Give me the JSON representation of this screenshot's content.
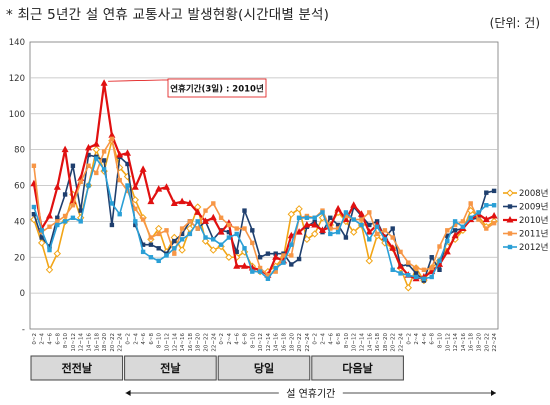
{
  "page": {
    "title": "* 최근 5년간 설 연휴 교통사고 발생현황(시간대별 분석)",
    "unit": "(단위: 건)"
  },
  "chart_data": {
    "type": "line",
    "title": "최근 5년간 설 연휴 교통사고 발생현황(시간대별 분석)",
    "ylim": [
      0,
      140
    ],
    "yticks": [
      -20,
      0,
      20,
      40,
      60,
      80,
      100,
      120,
      140
    ],
    "ytick_labels": [
      "-",
      "0",
      "20",
      "40",
      "60",
      "80",
      "100",
      "120",
      "140"
    ],
    "grid": true,
    "legend_position": "right",
    "hour_labels": [
      "0~2",
      "2~4",
      "4~6",
      "6~8",
      "8~10",
      "10~12",
      "12~14",
      "14~16",
      "16~18",
      "18~20",
      "20~22",
      "22~24"
    ],
    "groups": [
      "전전날",
      "전날",
      "당일",
      "다음날"
    ],
    "span_label": "설 연휴기간",
    "annotation": "연휴기간(3일) : 2010년",
    "series": [
      {
        "name": "2008년",
        "color": "#f2a516",
        "marker": "diamond-open",
        "values": [
          41,
          28,
          13,
          22,
          40,
          55,
          42,
          60,
          80,
          68,
          85,
          70,
          65,
          52,
          42,
          30,
          36,
          23,
          31,
          24,
          36,
          48,
          29,
          24,
          26,
          20,
          20,
          23,
          15,
          12,
          12,
          15,
          20,
          44,
          47,
          30,
          33,
          42,
          38,
          45,
          40,
          34,
          38,
          18,
          32,
          28,
          25,
          14,
          3,
          14,
          7,
          14,
          18,
          26,
          30,
          35,
          46,
          43,
          37,
          40
        ]
      },
      {
        "name": "2009년",
        "color": "#1f3f6e",
        "marker": "square",
        "values": [
          44,
          31,
          26,
          42,
          55,
          71,
          46,
          77,
          76,
          74,
          38,
          76,
          72,
          38,
          27,
          27,
          25,
          22,
          29,
          33,
          40,
          36,
          40,
          30,
          35,
          34,
          23,
          46,
          35,
          20,
          22,
          22,
          22,
          16,
          19,
          37,
          40,
          34,
          42,
          38,
          31,
          48,
          43,
          38,
          40,
          31,
          36,
          15,
          16,
          11,
          7,
          20,
          13,
          32,
          35,
          36,
          41,
          42,
          56,
          57
        ]
      },
      {
        "name": "2010년",
        "color": "#e01010",
        "marker": "triangle",
        "values": [
          61,
          36,
          43,
          59,
          80,
          51,
          64,
          81,
          83,
          117,
          88,
          77,
          78,
          59,
          69,
          51,
          58,
          59,
          50,
          51,
          50,
          45,
          40,
          42,
          34,
          39,
          15,
          15,
          14,
          13,
          10,
          20,
          18,
          32,
          34,
          38,
          38,
          35,
          37,
          47,
          41,
          49,
          44,
          34,
          38,
          31,
          25,
          15,
          10,
          8,
          9,
          12,
          16,
          23,
          32,
          36,
          41,
          44,
          41,
          43
        ]
      },
      {
        "name": "2011년",
        "color": "#f79646",
        "marker": "square",
        "values": [
          71,
          34,
          37,
          40,
          43,
          49,
          62,
          71,
          67,
          79,
          86,
          63,
          57,
          47,
          41,
          31,
          33,
          35,
          22,
          36,
          40,
          36,
          46,
          50,
          42,
          38,
          36,
          36,
          28,
          14,
          10,
          12,
          21,
          21,
          42,
          43,
          42,
          46,
          36,
          36,
          43,
          41,
          41,
          45,
          33,
          35,
          31,
          23,
          17,
          14,
          13,
          14,
          26,
          35,
          38,
          40,
          50,
          41,
          36,
          39
        ]
      },
      {
        "name": "2012년",
        "color": "#2a9fd6",
        "marker": "square",
        "values": [
          48,
          35,
          24,
          38,
          40,
          42,
          40,
          60,
          75,
          69,
          50,
          44,
          60,
          40,
          23,
          20,
          18,
          21,
          25,
          30,
          33,
          40,
          31,
          30,
          27,
          31,
          33,
          25,
          12,
          12,
          8,
          14,
          17,
          27,
          42,
          42,
          42,
          45,
          33,
          34,
          45,
          41,
          38,
          30,
          37,
          30,
          13,
          11,
          10,
          9,
          8,
          9,
          18,
          29,
          40,
          37,
          42,
          45,
          49,
          49
        ]
      }
    ]
  }
}
